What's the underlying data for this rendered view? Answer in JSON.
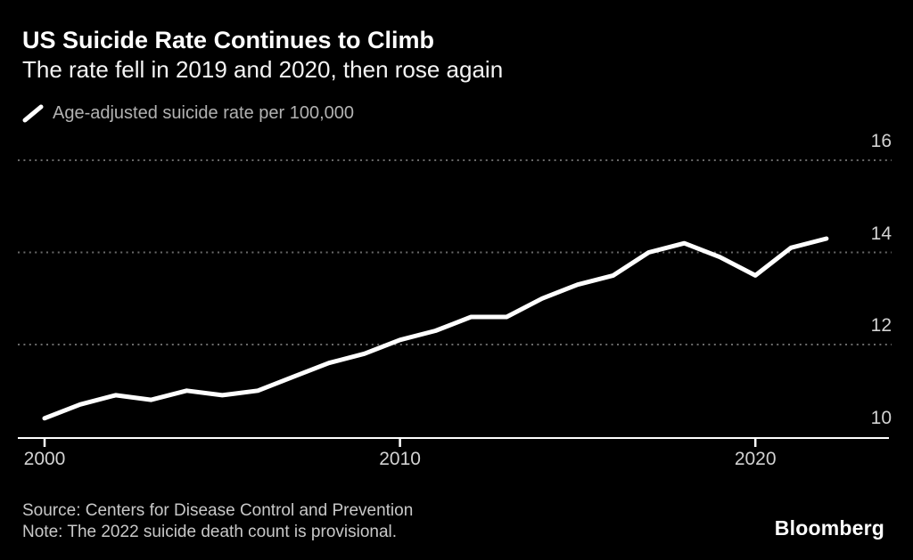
{
  "header": {
    "title": "US Suicide Rate Continues to Climb",
    "subtitle": "The rate fell in 2019 and 2020, then rose again"
  },
  "legend": {
    "label": "Age-adjusted suicide rate per 100,000"
  },
  "chart_data": {
    "type": "line",
    "title": "US Suicide Rate Continues to Climb",
    "subtitle": "The rate fell in 2019 and 2020, then rose again",
    "series": [
      {
        "name": "Age-adjusted suicide rate per 100,000",
        "values": [
          10.4,
          10.7,
          10.9,
          10.8,
          11.0,
          10.9,
          11.0,
          11.3,
          11.6,
          11.8,
          12.1,
          12.3,
          12.6,
          12.6,
          13.0,
          13.3,
          13.5,
          14.0,
          14.2,
          13.9,
          13.5,
          14.1,
          14.3
        ]
      }
    ],
    "x": [
      2000,
      2001,
      2002,
      2003,
      2004,
      2005,
      2006,
      2007,
      2008,
      2009,
      2010,
      2011,
      2012,
      2013,
      2014,
      2015,
      2016,
      2017,
      2018,
      2019,
      2020,
      2021,
      2022
    ],
    "xticks": [
      2000,
      2010,
      2020
    ],
    "yticks": [
      10,
      12,
      14,
      16
    ],
    "xlim": [
      2000,
      2023.8
    ],
    "ylim": [
      10,
      16.6
    ],
    "grid": "horizontal-dotted",
    "legend_position": "top-left",
    "y_axis_side": "right"
  },
  "footer": {
    "source": "Source: Centers for Disease Control and Prevention",
    "note": "Note: The 2022 suicide death count is provisional.",
    "brand": "Bloomberg"
  },
  "colors": {
    "background": "#000000",
    "line": "#ffffff",
    "grid": "#6a6a6a",
    "axis": "#ffffff",
    "tick_label": "#d2d2d2",
    "legend_text": "#b2b2b2",
    "footer_text": "#c8c8c8"
  }
}
